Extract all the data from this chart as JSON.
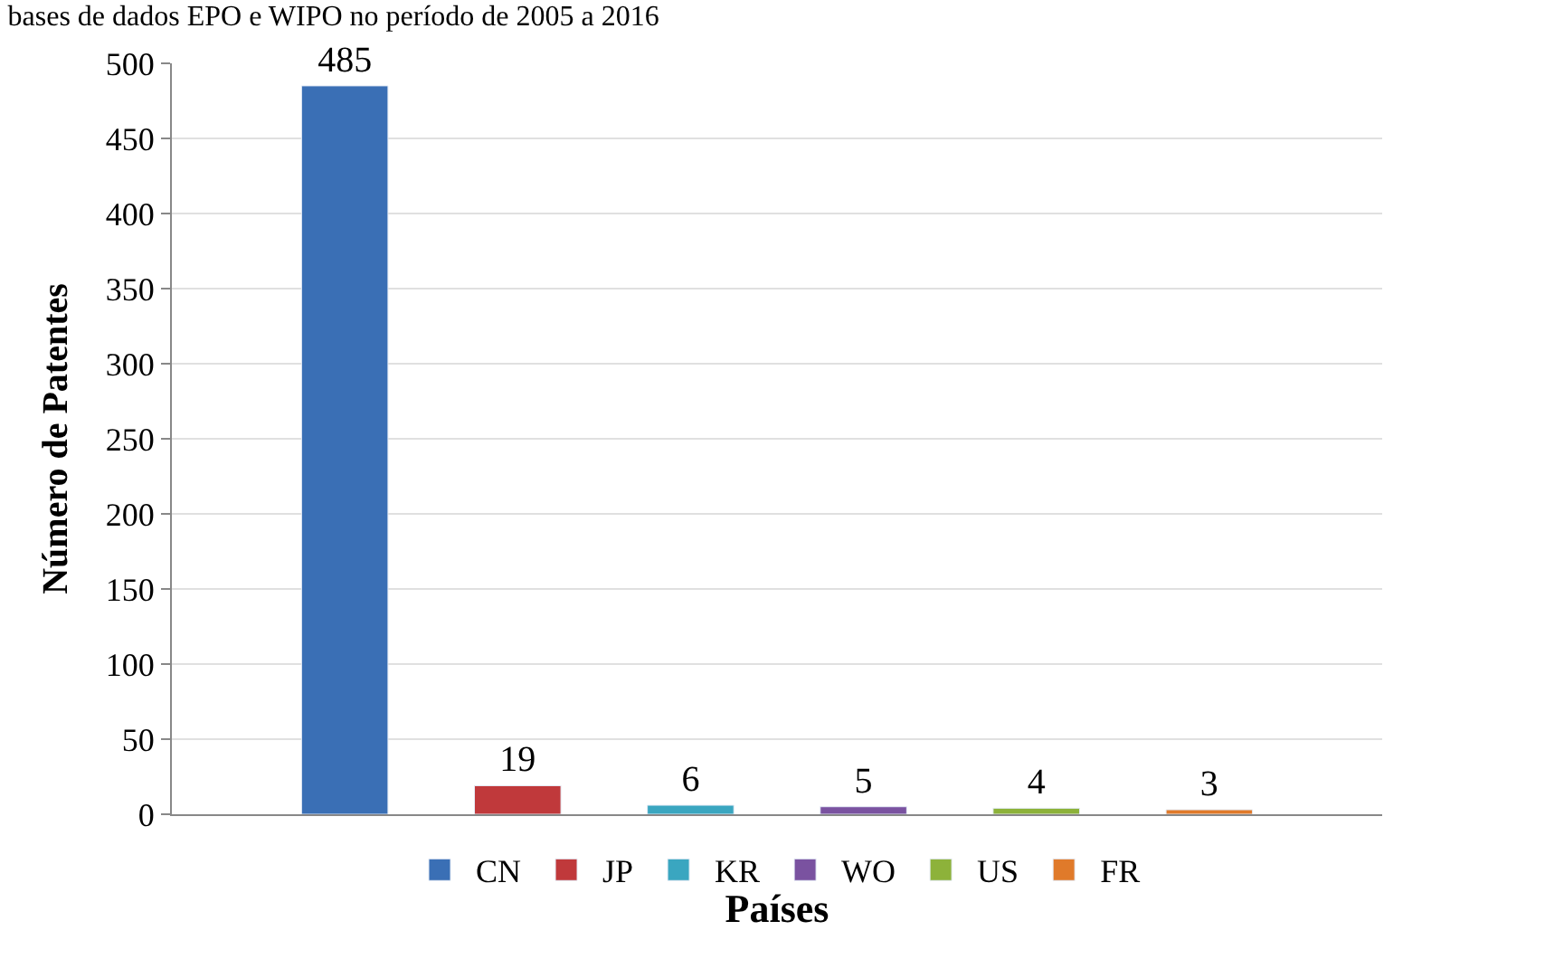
{
  "chart_data": {
    "type": "bar",
    "title": "bases de dados EPO e WIPO no período de 2005 a 2016",
    "xlabel": "Países",
    "ylabel": "Número de Patentes",
    "categories": [
      null,
      null,
      null,
      null,
      null,
      null
    ],
    "series": [
      {
        "name": "CN",
        "color": "#3a6fb5",
        "values": [
          485,
          null,
          null,
          null,
          null,
          null
        ]
      },
      {
        "name": "JP",
        "color": "#c0393b",
        "values": [
          null,
          19,
          null,
          null,
          null,
          null
        ]
      },
      {
        "name": "KR",
        "color": "#3aa6c0",
        "values": [
          null,
          null,
          6,
          null,
          null,
          null
        ]
      },
      {
        "name": "WO",
        "color": "#7a52a0",
        "values": [
          null,
          null,
          null,
          5,
          null,
          null
        ]
      },
      {
        "name": "US",
        "color": "#8db23a",
        "values": [
          null,
          null,
          null,
          null,
          4,
          null
        ]
      },
      {
        "name": "FR",
        "color": "#e07a2a",
        "values": [
          null,
          null,
          null,
          null,
          null,
          3
        ]
      }
    ],
    "ylim": [
      0,
      500
    ],
    "yticks": [
      0,
      50,
      100,
      150,
      200,
      250,
      300,
      350,
      400,
      450,
      500
    ],
    "grid": "y",
    "legend": "bottom",
    "data_labels": true
  }
}
